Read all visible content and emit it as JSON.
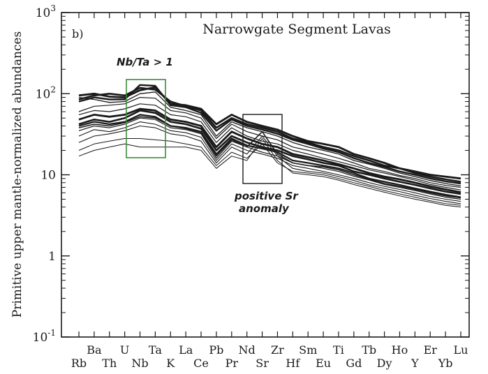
{
  "chart_data": {
    "type": "line",
    "title": "Narrowgate Segment Lavas",
    "panel_label": "b)",
    "ylabel": "Primitive upper mantle-normalized abundances",
    "xlabel": "",
    "yscale": "log",
    "ylim": [
      0.1,
      1000
    ],
    "y_ticks": [
      {
        "value": 0.1,
        "base": "10",
        "exp": "-1"
      },
      {
        "value": 1,
        "base": "1",
        "exp": ""
      },
      {
        "value": 10,
        "base": "10",
        "exp": ""
      },
      {
        "value": 100,
        "base": "10",
        "exp": "2"
      },
      {
        "value": 1000,
        "base": "10",
        "exp": "3"
      }
    ],
    "categories": [
      "Rb",
      "Ba",
      "Th",
      "U",
      "Nb",
      "Ta",
      "K",
      "La",
      "Ce",
      "Pb",
      "Pr",
      "Nd",
      "Sr",
      "Zr",
      "Hf",
      "Sm",
      "Eu",
      "Ti",
      "Gd",
      "Tb",
      "Dy",
      "Ho",
      "Y",
      "Er",
      "Yb",
      "Lu"
    ],
    "series": [
      {
        "values": [
          95,
          100,
          92,
          90,
          110,
          120,
          75,
          72,
          65,
          42,
          55,
          45,
          40,
          36,
          30,
          26,
          24,
          22,
          18,
          16,
          14,
          12,
          11,
          10,
          9.5,
          9
        ]
      },
      {
        "values": [
          85,
          95,
          100,
          95,
          118,
          112,
          80,
          70,
          62,
          38,
          50,
          42,
          38,
          34,
          28,
          25,
          22,
          20,
          17,
          15,
          13,
          12,
          10.5,
          9.5,
          8.8,
          8.2
        ]
      },
      {
        "values": [
          80,
          90,
          85,
          85,
          128,
          125,
          72,
          68,
          58,
          35,
          48,
          40,
          36,
          32,
          27,
          24,
          21,
          19,
          16,
          14,
          12.5,
          11,
          10,
          9,
          8.3,
          7.8
        ]
      },
      {
        "values": [
          90,
          85,
          78,
          80,
          100,
          105,
          68,
          62,
          55,
          30,
          45,
          38,
          34,
          30,
          25,
          22,
          20,
          18,
          15,
          13.5,
          12,
          10.5,
          9.5,
          8.5,
          7.8,
          7.3
        ]
      },
      {
        "values": [
          60,
          70,
          72,
          75,
          90,
          88,
          62,
          58,
          50,
          28,
          42,
          34,
          30,
          27,
          22,
          20,
          18,
          16,
          14,
          12,
          11,
          9.8,
          9,
          8,
          7.4,
          7
        ]
      },
      {
        "values": [
          55,
          62,
          60,
          65,
          75,
          72,
          55,
          52,
          45,
          25,
          38,
          30,
          26,
          24,
          20,
          18,
          16,
          14.5,
          13,
          11.5,
          10.5,
          9.5,
          8.6,
          7.6,
          7,
          6.5
        ]
      },
      {
        "values": [
          48,
          55,
          52,
          55,
          65,
          62,
          48,
          45,
          40,
          22,
          34,
          28,
          24,
          22,
          18,
          16.5,
          15,
          13.5,
          12,
          10.5,
          9.5,
          8.8,
          8,
          7.2,
          6.6,
          6.1
        ]
      },
      {
        "values": [
          42,
          48,
          45,
          50,
          62,
          58,
          45,
          42,
          37,
          20,
          30,
          25,
          22,
          20,
          17,
          15.5,
          14,
          13,
          11,
          10,
          9,
          8.2,
          7.5,
          6.8,
          6.2,
          5.8
        ]
      },
      {
        "values": [
          40,
          45,
          42,
          45,
          55,
          52,
          40,
          38,
          34,
          18,
          28,
          23,
          21,
          19,
          15,
          14,
          13,
          12,
          10.5,
          9,
          8.2,
          7.5,
          6.8,
          6.2,
          5.7,
          5.3
        ]
      },
      {
        "values": [
          35,
          40,
          38,
          42,
          50,
          48,
          38,
          36,
          32,
          16,
          26,
          22,
          19,
          17,
          14,
          13,
          12,
          11,
          9.6,
          8.6,
          7.6,
          7,
          6.4,
          5.8,
          5.3,
          5
        ]
      },
      {
        "values": [
          30,
          36,
          34,
          38,
          45,
          42,
          35,
          33,
          29,
          15,
          24,
          20,
          18,
          16,
          13,
          12,
          11,
          10,
          9,
          8,
          7.2,
          6.6,
          6,
          5.4,
          5,
          4.7
        ]
      },
      {
        "values": [
          25,
          30,
          32,
          35,
          40,
          38,
          32,
          30,
          26,
          14,
          22,
          18,
          30,
          17,
          12,
          11,
          10.5,
          9.5,
          8.5,
          7.5,
          6.8,
          6.2,
          5.6,
          5.1,
          4.7,
          4.4
        ]
      },
      {
        "values": [
          20,
          24,
          26,
          28,
          28,
          27,
          26,
          24,
          22,
          13,
          19,
          16,
          24,
          14,
          11,
          10.5,
          10,
          9,
          8,
          7.2,
          6.4,
          5.8,
          5.3,
          4.8,
          4.4,
          4.2
        ]
      },
      {
        "values": [
          17,
          20,
          22,
          24,
          22,
          22,
          22,
          22,
          20,
          12,
          17,
          15,
          28,
          15,
          10.5,
          10,
          9.5,
          8.6,
          7.6,
          6.8,
          6.1,
          5.5,
          5,
          4.6,
          4.2,
          4
        ]
      },
      {
        "values": [
          38,
          42,
          40,
          44,
          52,
          50,
          40,
          37,
          33,
          17,
          27,
          22,
          34,
          18,
          14,
          13,
          12.5,
          11.5,
          10,
          8.8,
          7.8,
          7.2,
          6.6,
          6,
          5.5,
          5.2
        ]
      }
    ],
    "annotations": [
      {
        "text": "Nb/Ta > 1"
      },
      {
        "text": "positive Sr"
      },
      {
        "text": "anomaly"
      }
    ],
    "grid": false,
    "legend": "none",
    "colors": {
      "line": "#1a1a1a",
      "nb_ta_box": "#3f8a3a",
      "sr_box": "#1a1a1a",
      "axis": "#1a1a1a"
    }
  }
}
